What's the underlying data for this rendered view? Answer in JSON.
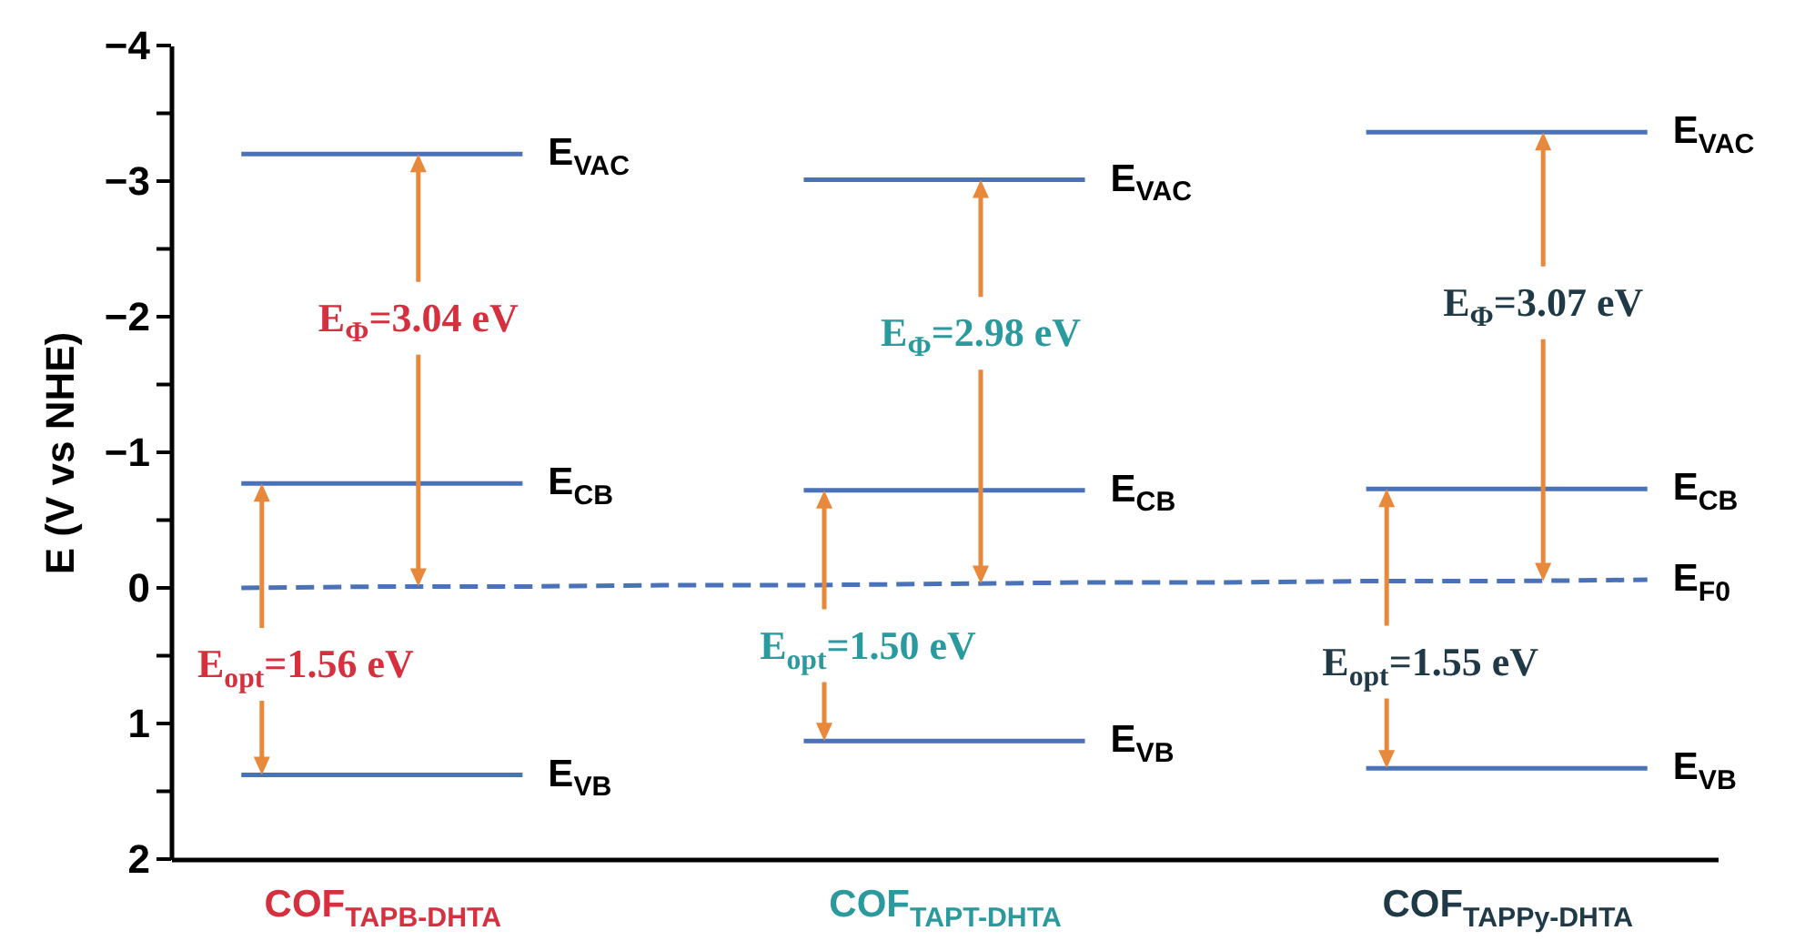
{
  "chart_data": {
    "type": "line",
    "ylabel": "E (V vs NHE)",
    "categories": [
      null,
      "COF$_{TAPB-DHTA}$",
      null,
      null,
      null,
      "COF$_{TAPT-DHTA}$",
      null,
      null,
      null,
      "COF$_{TAPPy-DHTA}$",
      null
    ],
    "ylim": [
      2,
      -4
    ],
    "yticks": [
      -4,
      {
        "value": -3.5,
        "label": null
      },
      -3,
      {
        "value": -2.5,
        "label": null
      },
      -2,
      {
        "value": -1.5,
        "label": null
      },
      -1,
      {
        "value": -0.5,
        "label": null
      },
      0,
      {
        "value": 0.5,
        "label": null
      },
      1,
      {
        "value": 1.5,
        "label": null
      },
      2
    ],
    "series": [
      {
        "name": "E$_{VAC}$",
        "color": "#4a72b8",
        "values": [
          -3.2,
          -3.2,
          -3.2,
          null,
          -3.01,
          -3.01,
          -3.01,
          null,
          -3.36,
          -3.36,
          -3.36
        ]
      },
      {
        "name": "E$_{CB}$",
        "color": "#4a72b8",
        "values": [
          -0.77,
          -0.77,
          -0.77,
          null,
          -0.72,
          -0.72,
          -0.72,
          null,
          -0.73,
          -0.73,
          -0.73
        ]
      },
      {
        "name": "E$_{VB}$",
        "color": "#4a72b8",
        "values": [
          1.38,
          1.38,
          1.38,
          null,
          1.13,
          1.13,
          1.13,
          null,
          1.33,
          1.33,
          1.33
        ]
      },
      {
        "name": "E$_{F0}$",
        "color": "#4a72b8",
        "line_style": "dashed",
        "values": [
          0,
          -0.01,
          -0.01,
          -0.02,
          -0.02,
          -0.03,
          -0.04,
          -0.04,
          -0.05,
          -0.05,
          -0.06
        ]
      }
    ],
    "annotations": [
      "E$_{Φ}$=3.04 eV",
      "E$_{opt}$=1.56 eV",
      "E$_{Φ}$=2.98 eV",
      "E$_{opt}$=1.50 eV",
      "E$_{Φ}$=3.07 eV",
      "E$_{opt}$=1.55 eV"
    ]
  }
}
